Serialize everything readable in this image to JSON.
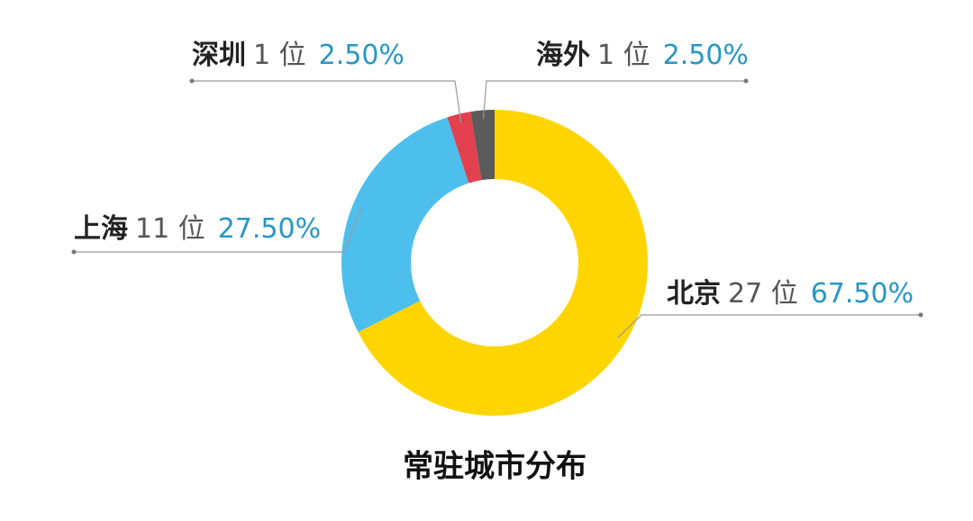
{
  "chart_data": {
    "type": "donut",
    "title": "常驻城市分布",
    "categories": [
      "北京",
      "上海",
      "深圳",
      "海外"
    ],
    "values": [
      67.5,
      27.5,
      2.5,
      2.5
    ],
    "value_labels": [
      "67.50%",
      "27.50%",
      "2.50%",
      "2.50%"
    ],
    "counts": [
      27,
      11,
      1,
      1
    ],
    "count_labels": [
      "27 位",
      "11 位",
      "1 位",
      "1 位"
    ],
    "colors": [
      "#FFD500",
      "#4DBFEC",
      "#E2404F",
      "#5B5B5B"
    ]
  }
}
